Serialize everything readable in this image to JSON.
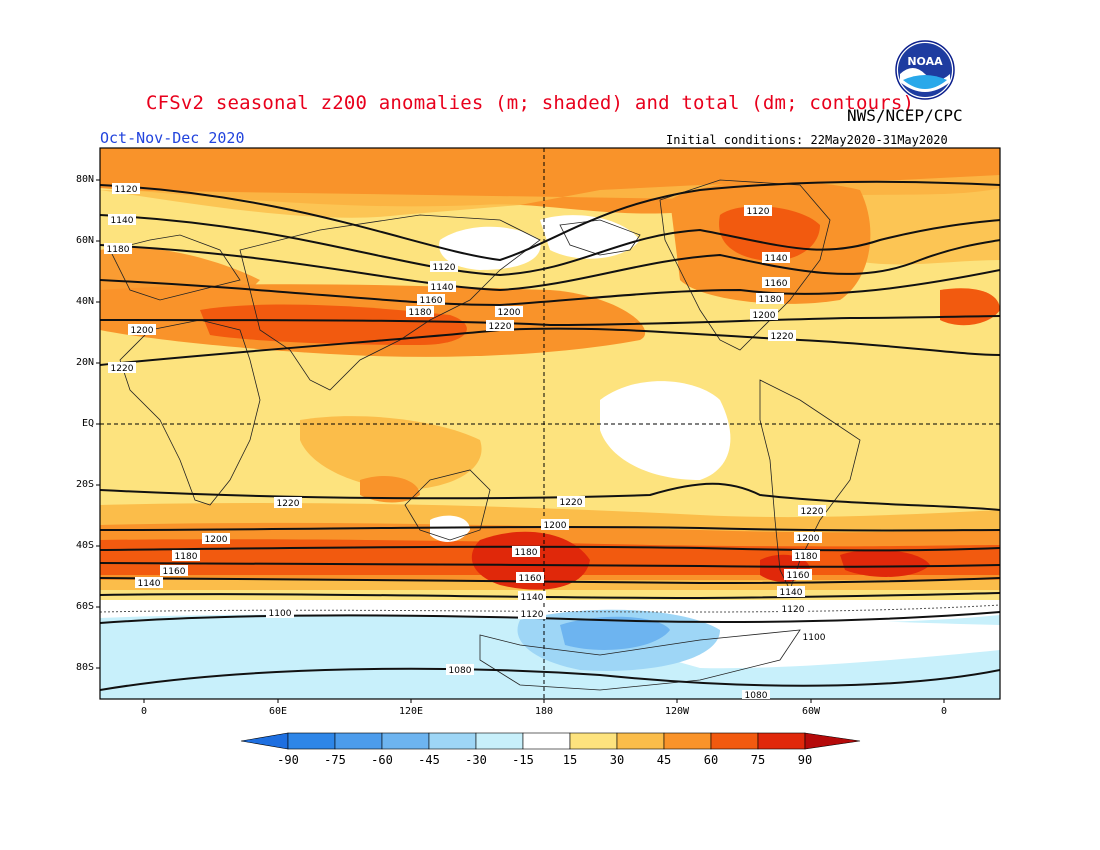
{
  "header": {
    "title": "CFSv2 seasonal z200 anomalies (m; shaded) and total (dm; contours)",
    "credit": "NWS/NCEP/CPC",
    "season": "Oct-Nov-Dec 2020",
    "initial_conditions": "Initial conditions: 22May2020-31May2020"
  },
  "logo": {
    "text": "NOAA",
    "icon": "noaa-logo-icon"
  },
  "axes": {
    "lat_labels": [
      "80N",
      "60N",
      "40N",
      "20N",
      "EQ",
      "20S",
      "40S",
      "60S",
      "80S"
    ],
    "lon_labels": [
      "0",
      "60E",
      "120E",
      "180",
      "120W",
      "60W",
      "0"
    ]
  },
  "colorbar": {
    "ticks": [
      "-90",
      "-75",
      "-60",
      "-45",
      "-30",
      "-15",
      "15",
      "30",
      "45",
      "60",
      "75",
      "90"
    ],
    "colors": [
      "#1e6fe0",
      "#2e86e8",
      "#4c9cec",
      "#6db4f0",
      "#9ed6f6",
      "#c8f0fb",
      "#ffffff",
      "#fde37e",
      "#fbbd4a",
      "#f9932a",
      "#f25a0f",
      "#e0280a",
      "#b50a0a"
    ]
  },
  "contour_labels": [
    "1120",
    "1140",
    "1160",
    "1180",
    "1200",
    "1220",
    "1120",
    "1140",
    "1160",
    "1180",
    "1200",
    "1220",
    "1120",
    "1140",
    "1160",
    "1180",
    "1200",
    "1220",
    "1220",
    "1200",
    "1180",
    "1160",
    "1140",
    "1220",
    "1200",
    "1180",
    "1160",
    "1140",
    "1120",
    "1220",
    "1200",
    "1180",
    "1160",
    "1140",
    "1120",
    "1100",
    "1100",
    "1080",
    "1080"
  ]
}
